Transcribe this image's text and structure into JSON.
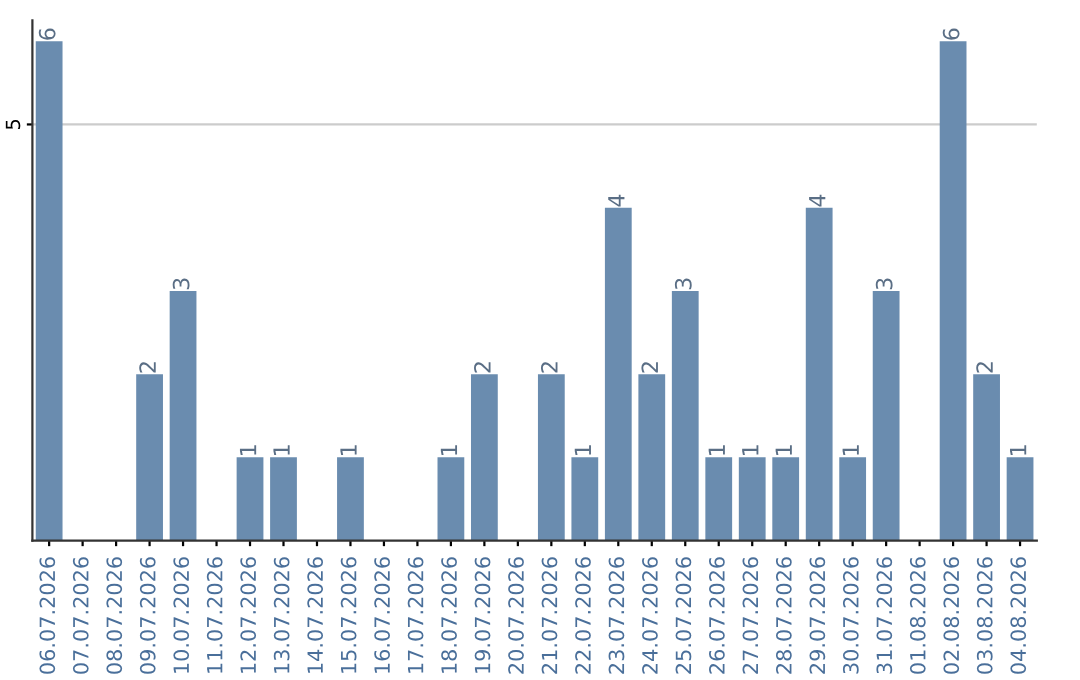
{
  "chart_data": {
    "type": "bar",
    "categories": [
      "06.07.2026",
      "07.07.2026",
      "08.07.2026",
      "09.07.2026",
      "10.07.2026",
      "11.07.2026",
      "12.07.2026",
      "13.07.2026",
      "14.07.2026",
      "15.07.2026",
      "16.07.2026",
      "17.07.2026",
      "18.07.2026",
      "19.07.2026",
      "20.07.2026",
      "21.07.2026",
      "22.07.2026",
      "23.07.2026",
      "24.07.2026",
      "25.07.2026",
      "26.07.2026",
      "27.07.2026",
      "28.07.2026",
      "29.07.2026",
      "30.07.2026",
      "31.07.2026",
      "01.08.2026",
      "02.08.2026",
      "03.08.2026",
      "04.08.2026"
    ],
    "values": [
      6,
      0,
      0,
      2,
      3,
      0,
      1,
      1,
      0,
      1,
      0,
      0,
      1,
      2,
      0,
      2,
      1,
      4,
      2,
      3,
      1,
      1,
      1,
      4,
      1,
      3,
      0,
      6,
      2,
      1
    ],
    "value_labels": [
      "6",
      null,
      null,
      "2",
      "3",
      null,
      "1",
      "1",
      null,
      "1",
      null,
      null,
      "1",
      "2",
      null,
      "2",
      "1",
      "4",
      "2",
      "3",
      "1",
      "1",
      "1",
      "4",
      "1",
      "3",
      null,
      "6",
      "2",
      "1"
    ],
    "color": "#6a8caf",
    "ylim": [
      0,
      6.25
    ],
    "yticks": [
      5
    ],
    "grid": "y",
    "legend": false
  }
}
